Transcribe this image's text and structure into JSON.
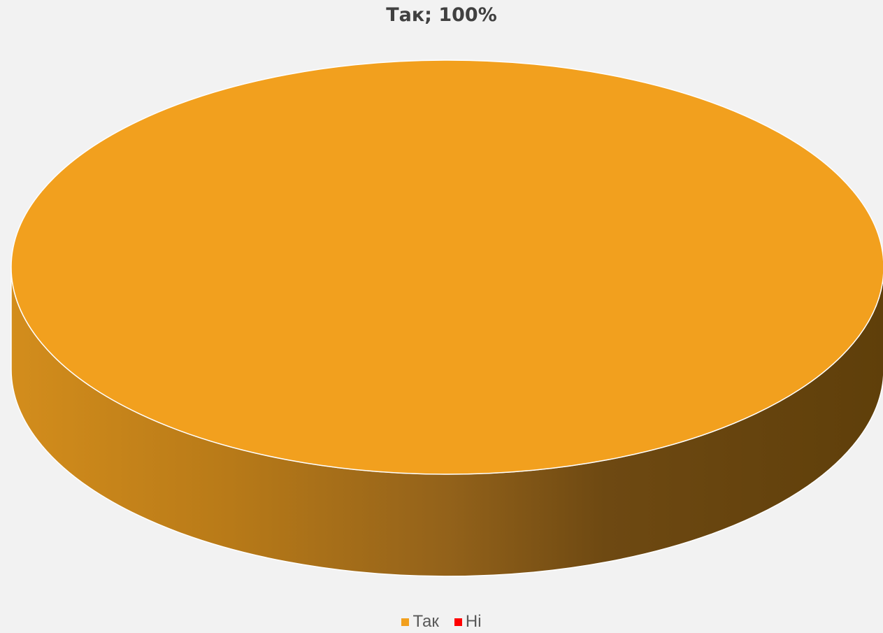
{
  "chart_data": {
    "type": "pie",
    "style": "3d",
    "title": "",
    "categories": [
      "Так",
      "Ні"
    ],
    "values": [
      100,
      0
    ],
    "colors": [
      "#f2a01e",
      "#ff0000"
    ],
    "data_labels": [
      "Так; 100%"
    ],
    "legend": {
      "position": "bottom",
      "entries": [
        "Так",
        "Ні"
      ]
    }
  }
}
